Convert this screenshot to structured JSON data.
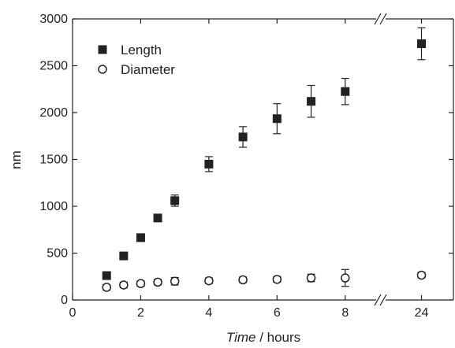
{
  "chart_data": {
    "type": "scatter",
    "xlabel_italic": "Time",
    "xlabel_rest": " / hours",
    "ylabel": "nm",
    "x_axis_segments": [
      {
        "range": [
          0,
          9
        ],
        "ticks": [
          0,
          2,
          4,
          6,
          8
        ]
      },
      {
        "range": [
          23,
          25
        ],
        "ticks": [
          24
        ]
      }
    ],
    "ylim": [
      0,
      3000
    ],
    "yticks": [
      0,
      500,
      1000,
      1500,
      2000,
      2500,
      3000
    ],
    "grid": false,
    "legend_position": "top-left",
    "series": [
      {
        "name": "Length",
        "marker": "filled-square",
        "points": [
          {
            "x": 1,
            "y": 260,
            "err": 40
          },
          {
            "x": 1.5,
            "y": 470,
            "err": 30
          },
          {
            "x": 2,
            "y": 665,
            "err": 30
          },
          {
            "x": 2.5,
            "y": 875,
            "err": 30
          },
          {
            "x": 3,
            "y": 1060,
            "err": 60
          },
          {
            "x": 4,
            "y": 1450,
            "err": 80
          },
          {
            "x": 5,
            "y": 1740,
            "err": 110
          },
          {
            "x": 6,
            "y": 1935,
            "err": 160
          },
          {
            "x": 7,
            "y": 2120,
            "err": 170
          },
          {
            "x": 8,
            "y": 2225,
            "err": 140
          },
          {
            "x": 24,
            "y": 2735,
            "err": 170
          }
        ]
      },
      {
        "name": "Diameter",
        "marker": "open-circle",
        "points": [
          {
            "x": 1,
            "y": 135,
            "err": 30
          },
          {
            "x": 1.5,
            "y": 160,
            "err": 30
          },
          {
            "x": 2,
            "y": 175,
            "err": 30
          },
          {
            "x": 2.5,
            "y": 190,
            "err": 30
          },
          {
            "x": 3,
            "y": 200,
            "err": 40
          },
          {
            "x": 4,
            "y": 205,
            "err": 30
          },
          {
            "x": 5,
            "y": 215,
            "err": 30
          },
          {
            "x": 6,
            "y": 220,
            "err": 30
          },
          {
            "x": 7,
            "y": 235,
            "err": 40
          },
          {
            "x": 8,
            "y": 235,
            "err": 90
          },
          {
            "x": 24,
            "y": 265,
            "err": 30
          }
        ]
      }
    ]
  }
}
